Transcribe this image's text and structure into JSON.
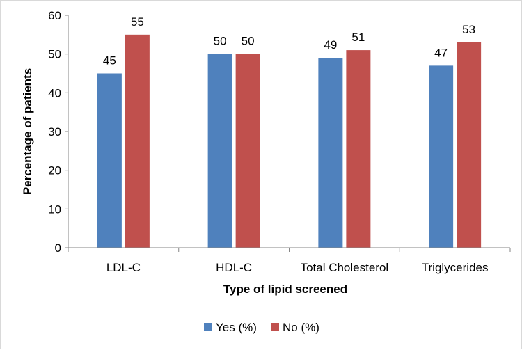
{
  "chart_data": {
    "type": "bar",
    "title": "",
    "categories": [
      "LDL-C",
      "HDL-C",
      "Total Cholesterol",
      "Triglycerides"
    ],
    "series": [
      {
        "name": "Yes (%)",
        "values": [
          45,
          50,
          49,
          47
        ],
        "color": "#4F81BD"
      },
      {
        "name": "No (%)",
        "values": [
          55,
          50,
          51,
          53
        ],
        "color": "#C0504D"
      }
    ],
    "xlabel": "Type of lipid screened",
    "ylabel": "Percentage of patients",
    "ylim": [
      0,
      60
    ],
    "yticks": [
      "0",
      "10",
      "20",
      "30",
      "40",
      "50",
      "60"
    ],
    "grid": false,
    "legend_position": "bottom"
  }
}
